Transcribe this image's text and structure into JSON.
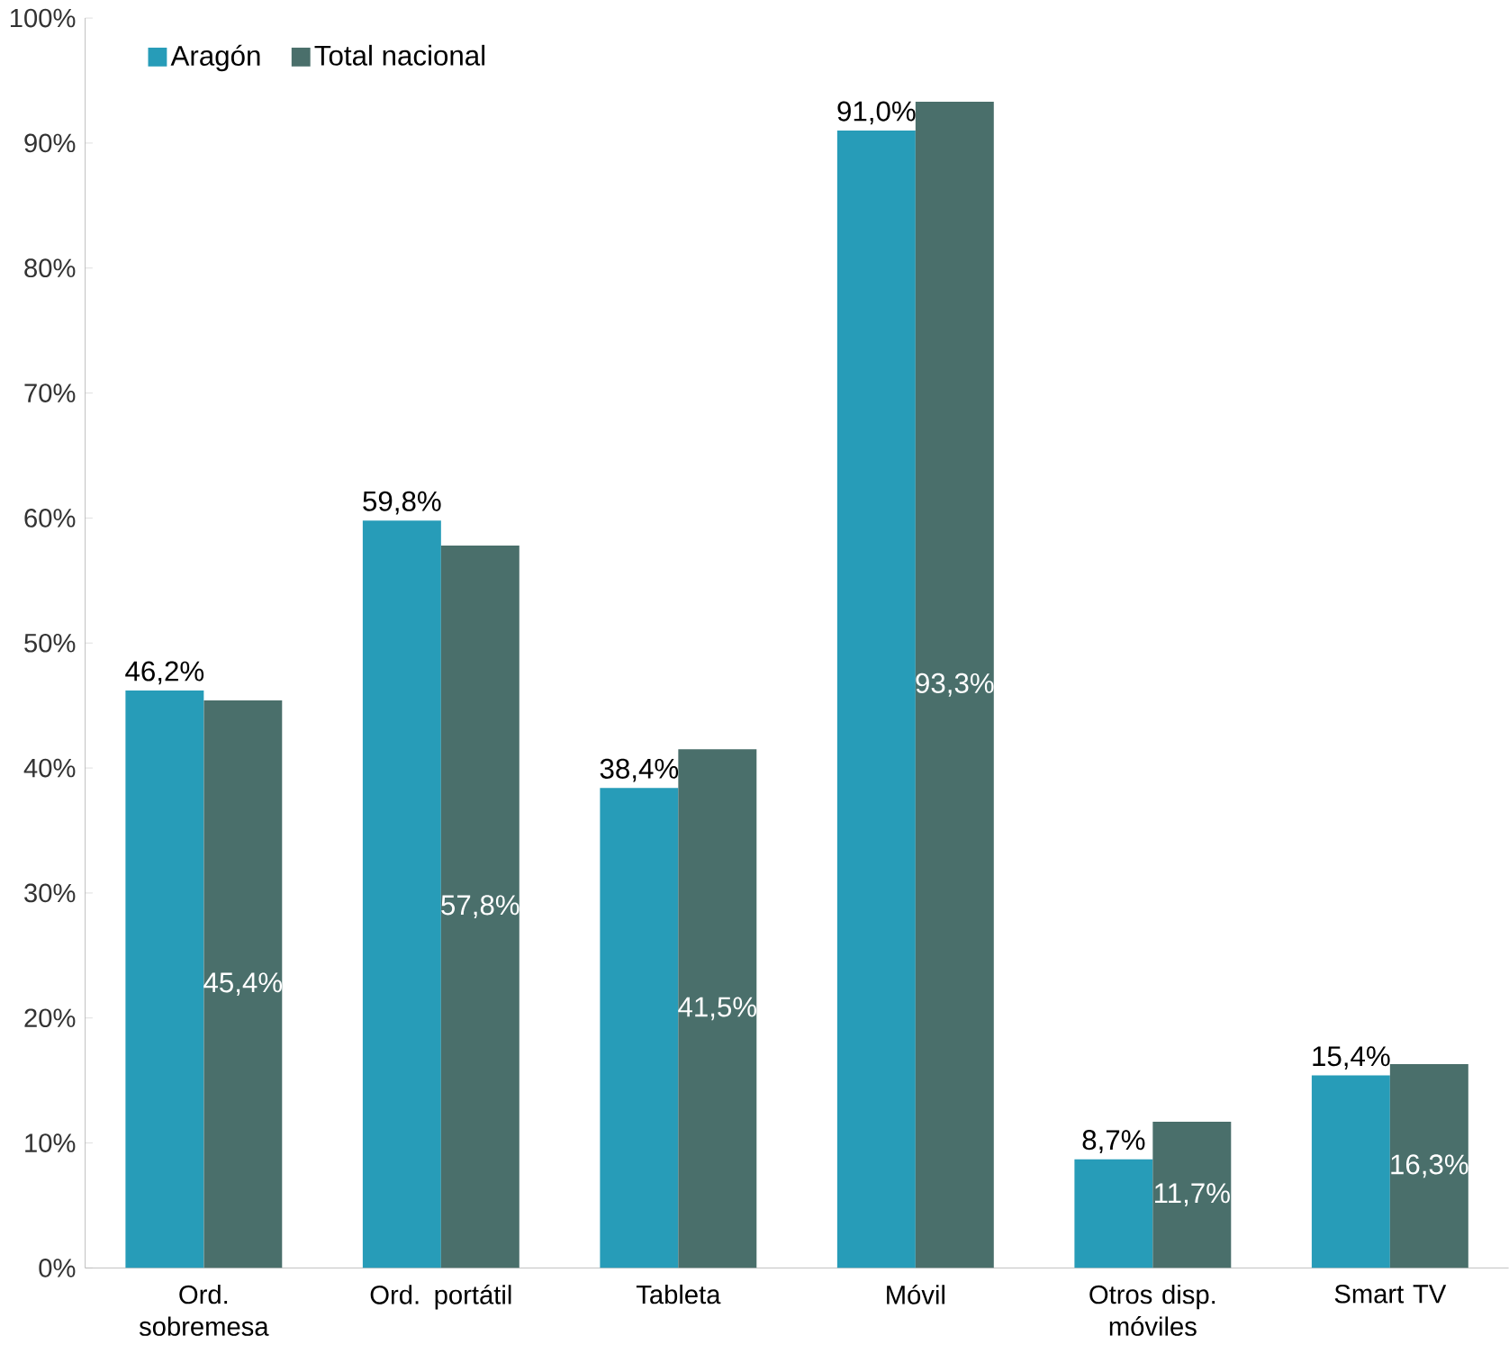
{
  "chart_data": {
    "type": "bar",
    "categories": [
      "Ord. sobremesa",
      "Ord. portátil",
      "Tableta",
      "Móvil",
      "Otros disp. móviles",
      "Smart TV"
    ],
    "series": [
      {
        "name": "Aragón",
        "color": "#279cb8",
        "values": [
          46.2,
          59.8,
          38.4,
          91.0,
          8.7,
          15.4
        ],
        "value_labels": [
          "46,2%",
          "59,8%",
          "38,4%",
          "91,0%",
          "8,7%",
          "15,4%"
        ]
      },
      {
        "name": "Total nacional",
        "color": "#4a6f6b",
        "values": [
          45.4,
          57.8,
          41.5,
          93.3,
          11.7,
          16.3
        ],
        "value_labels": [
          "45,4%",
          "57,8%",
          "41,5%",
          "93,3%",
          "11,7%",
          "16,3%"
        ]
      }
    ],
    "ylim": [
      0,
      100
    ],
    "yticks": [
      {
        "value": 0,
        "label": "0%"
      },
      {
        "value": 10,
        "label": "10%"
      },
      {
        "value": 20,
        "label": "20%"
      },
      {
        "value": 30,
        "label": "30%"
      },
      {
        "value": 40,
        "label": "40%"
      },
      {
        "value": 50,
        "label": "50%"
      },
      {
        "value": 60,
        "label": "60%"
      },
      {
        "value": 70,
        "label": "70%"
      },
      {
        "value": 80,
        "label": "80%"
      },
      {
        "value": 90,
        "label": "90%"
      },
      {
        "value": 100,
        "label": "100%"
      }
    ],
    "grid": false,
    "legend": "top left"
  }
}
